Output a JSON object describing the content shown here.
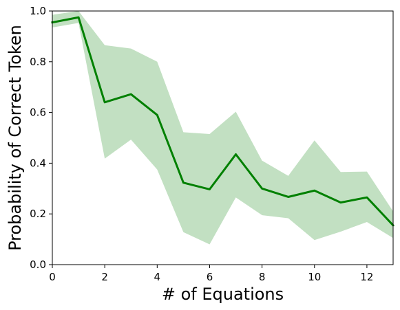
{
  "chart_data": {
    "type": "line",
    "xlabel": "# of Equations",
    "ylabel": "Probability of Correct Token",
    "xlim": [
      0,
      13
    ],
    "ylim": [
      0.0,
      1.0
    ],
    "xticks": [
      0,
      2,
      4,
      6,
      8,
      10,
      12
    ],
    "xtick_labels": [
      "0",
      "2",
      "4",
      "6",
      "8",
      "10",
      "12"
    ],
    "yticks": [
      0.0,
      0.2,
      0.4,
      0.6,
      0.8,
      1.0
    ],
    "ytick_labels": [
      "0.0",
      "0.2",
      "0.4",
      "0.6",
      "0.8",
      "1.0"
    ],
    "grid": false,
    "series": [
      {
        "x": [
          0,
          1,
          2,
          3,
          4,
          5,
          6,
          7,
          8,
          9,
          10,
          11,
          12,
          13
        ],
        "values": [
          0.955,
          0.975,
          0.64,
          0.672,
          0.59,
          0.323,
          0.297,
          0.435,
          0.3,
          0.267,
          0.292,
          0.245,
          0.265,
          0.155
        ],
        "upper": [
          0.985,
          1.0,
          0.865,
          0.852,
          0.8,
          0.522,
          0.515,
          0.603,
          0.41,
          0.35,
          0.49,
          0.365,
          0.367,
          0.21
        ],
        "lower": [
          0.935,
          0.953,
          0.418,
          0.493,
          0.375,
          0.128,
          0.08,
          0.265,
          0.195,
          0.183,
          0.097,
          0.13,
          0.168,
          0.105
        ],
        "color": "#008000",
        "band_color": "#c2e0c2"
      }
    ]
  }
}
